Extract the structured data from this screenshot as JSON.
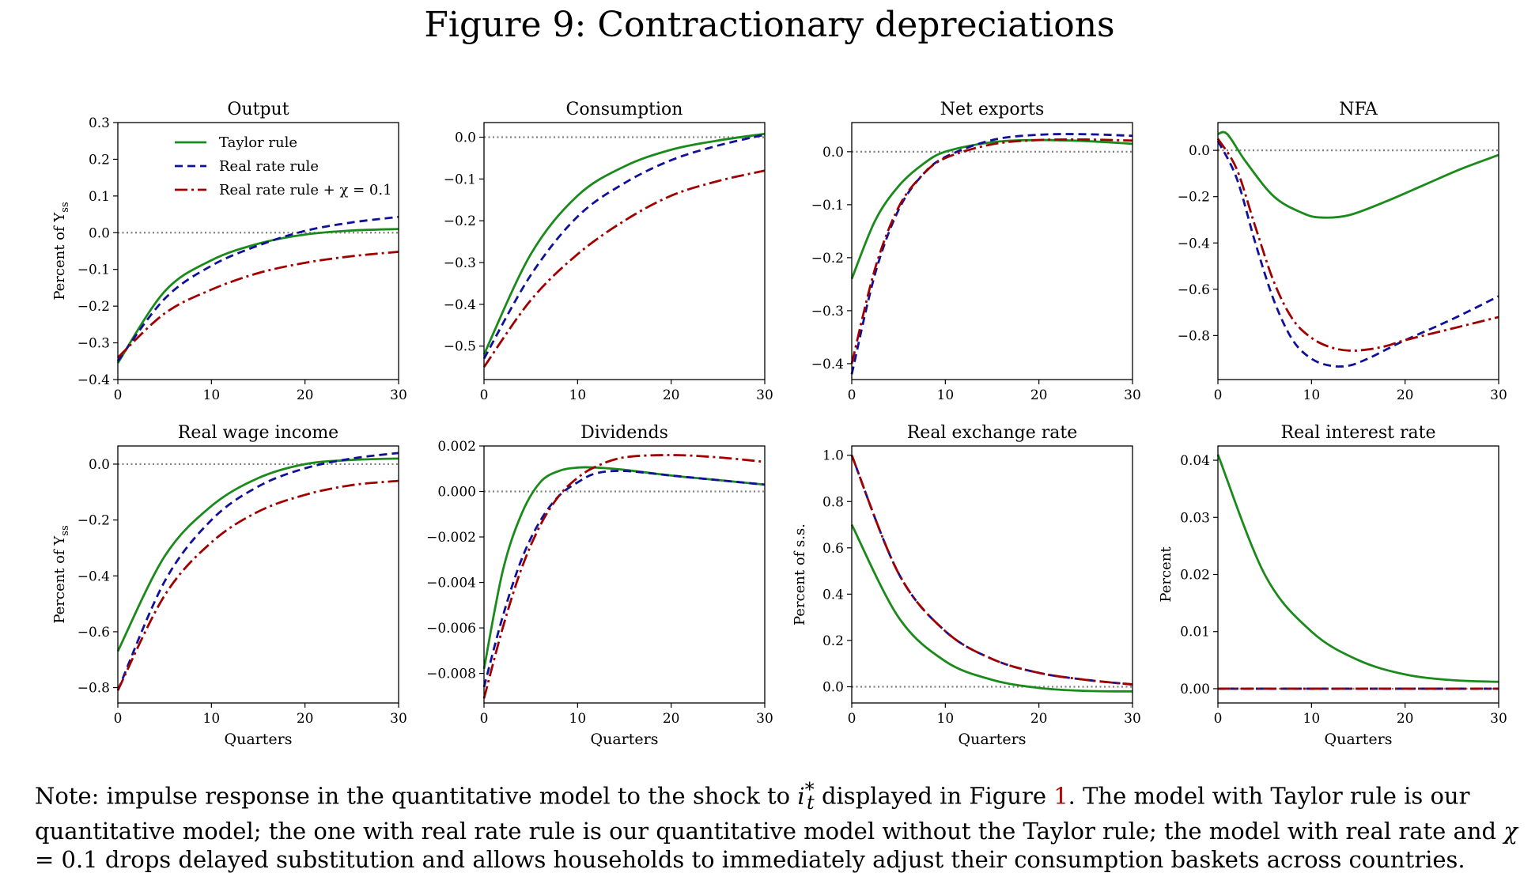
{
  "figure_title": "Figure 9: Contractionary depreciations",
  "note": {
    "part1": "Note: impulse response in the quantitative model to the shock to ",
    "math_var": "i",
    "math_sup": "*",
    "math_sub": "t",
    "part2": " displayed in Figure ",
    "figure_ref": "1",
    "part3": ". The model with Taylor rule is our quantitative model; the one with real rate rule is our quantitative model without the Taylor rule; the model with real rate and ",
    "chi": "χ",
    "part4": " = 0.1 drops delayed substitution and allows households to immediately adjust their consumption baskets across countries."
  },
  "legend": [
    {
      "label": "Taylor rule",
      "color": "#1a8a1a",
      "style": "solid"
    },
    {
      "label": "Real rate rule",
      "color": "#10109a",
      "style": "dashed"
    },
    {
      "label": "Real rate rule + χ = 0.1",
      "color": "#a00000",
      "style": "dashdot"
    }
  ],
  "colors": {
    "taylor": "#1a8a1a",
    "real_rate": "#10109a",
    "real_rate_chi": "#a00000",
    "zero_line": "#808080"
  },
  "chart_data": [
    {
      "type": "line",
      "title": "Output",
      "ylabel": "Percent of Y_ss",
      "xlabel": "",
      "xlim": [
        0,
        30
      ],
      "ylim": [
        -0.4,
        0.3
      ],
      "xticks": [
        0,
        10,
        20,
        30
      ],
      "xticklabels": [
        "0",
        "10",
        "20",
        "30"
      ],
      "yticks": [
        -0.4,
        -0.3,
        -0.2,
        -0.1,
        0.0,
        0.1,
        0.2,
        0.3
      ],
      "yticklabels": [
        "−0.4",
        "−0.3",
        "−0.2",
        "−0.1",
        "0.0",
        "0.1",
        "0.2",
        "0.3"
      ],
      "show_legend": true,
      "series": [
        {
          "name": "Taylor rule",
          "x": [
            0,
            5,
            10,
            15,
            20,
            25,
            30
          ],
          "y": [
            -0.355,
            -0.16,
            -0.075,
            -0.03,
            -0.005,
            0.006,
            0.01
          ]
        },
        {
          "name": "Real rate rule",
          "x": [
            0,
            5,
            10,
            15,
            20,
            25,
            30
          ],
          "y": [
            -0.35,
            -0.18,
            -0.09,
            -0.035,
            0.005,
            0.028,
            0.043
          ]
        },
        {
          "name": "Real rate rule + χ = 0.1",
          "x": [
            0,
            5,
            10,
            15,
            20,
            25,
            30
          ],
          "y": [
            -0.34,
            -0.22,
            -0.155,
            -0.11,
            -0.082,
            -0.064,
            -0.052
          ]
        }
      ]
    },
    {
      "type": "line",
      "title": "Consumption",
      "ylabel": "",
      "xlabel": "",
      "xlim": [
        0,
        30
      ],
      "ylim": [
        -0.58,
        0.035
      ],
      "xticks": [
        0,
        10,
        20,
        30
      ],
      "xticklabels": [
        "0",
        "10",
        "20",
        "30"
      ],
      "yticks": [
        -0.5,
        -0.4,
        -0.3,
        -0.2,
        -0.1,
        0.0
      ],
      "yticklabels": [
        "−0.5",
        "−0.4",
        "−0.3",
        "−0.2",
        "−0.1",
        "0.0"
      ],
      "show_legend": false,
      "series": [
        {
          "name": "Taylor rule",
          "x": [
            0,
            5,
            10,
            15,
            20,
            25,
            30
          ],
          "y": [
            -0.52,
            -0.28,
            -0.14,
            -0.07,
            -0.03,
            -0.008,
            0.008
          ]
        },
        {
          "name": "Real rate rule",
          "x": [
            0,
            5,
            10,
            15,
            20,
            25,
            30
          ],
          "y": [
            -0.53,
            -0.33,
            -0.19,
            -0.11,
            -0.055,
            -0.02,
            0.006
          ]
        },
        {
          "name": "Real rate rule + χ = 0.1",
          "x": [
            0,
            5,
            10,
            15,
            20,
            25,
            30
          ],
          "y": [
            -0.55,
            -0.39,
            -0.28,
            -0.2,
            -0.14,
            -0.105,
            -0.08
          ]
        }
      ]
    },
    {
      "type": "line",
      "title": "Net exports",
      "ylabel": "",
      "xlabel": "",
      "xlim": [
        0,
        30
      ],
      "ylim": [
        -0.43,
        0.055
      ],
      "xticks": [
        0,
        10,
        20,
        30
      ],
      "xticklabels": [
        "0",
        "10",
        "20",
        "30"
      ],
      "yticks": [
        -0.4,
        -0.3,
        -0.2,
        -0.1,
        0.0
      ],
      "yticklabels": [
        "−0.4",
        "−0.3",
        "−0.2",
        "−0.1",
        "0.0"
      ],
      "show_legend": false,
      "series": [
        {
          "name": "Taylor rule",
          "x": [
            0,
            2.5,
            5,
            7.5,
            10,
            15,
            20,
            25,
            30
          ],
          "y": [
            -0.24,
            -0.13,
            -0.065,
            -0.025,
            0.0,
            0.018,
            0.022,
            0.02,
            0.015
          ]
        },
        {
          "name": "Real rate rule",
          "x": [
            0,
            2.5,
            5,
            7.5,
            10,
            15,
            20,
            25,
            30
          ],
          "y": [
            -0.42,
            -0.23,
            -0.11,
            -0.045,
            -0.01,
            0.022,
            0.032,
            0.033,
            0.03
          ]
        },
        {
          "name": "Real rate rule + χ = 0.1",
          "x": [
            0,
            2.5,
            5,
            7.5,
            10,
            15,
            20,
            25,
            30
          ],
          "y": [
            -0.4,
            -0.22,
            -0.105,
            -0.045,
            -0.012,
            0.014,
            0.022,
            0.023,
            0.021
          ]
        }
      ]
    },
    {
      "type": "line",
      "title": "NFA",
      "ylabel": "",
      "xlabel": "",
      "xlim": [
        0,
        30
      ],
      "ylim": [
        -0.99,
        0.12
      ],
      "xticks": [
        0,
        10,
        20,
        30
      ],
      "xticklabels": [
        "0",
        "10",
        "20",
        "30"
      ],
      "yticks": [
        -0.8,
        -0.6,
        -0.4,
        -0.2,
        0.0
      ],
      "yticklabels": [
        "−0.8",
        "−0.6",
        "−0.4",
        "−0.2",
        "0.0"
      ],
      "show_legend": false,
      "series": [
        {
          "name": "Taylor rule",
          "x": [
            0,
            1,
            3,
            6,
            9,
            11,
            14,
            18,
            22,
            26,
            30
          ],
          "y": [
            0.07,
            0.07,
            -0.05,
            -0.2,
            -0.27,
            -0.29,
            -0.28,
            -0.22,
            -0.15,
            -0.08,
            -0.02
          ]
        },
        {
          "name": "Real rate rule",
          "x": [
            0,
            2,
            4,
            6,
            8,
            10,
            12,
            14,
            16,
            18,
            20,
            25,
            30
          ],
          "y": [
            0.04,
            -0.12,
            -0.4,
            -0.65,
            -0.82,
            -0.9,
            -0.93,
            -0.93,
            -0.9,
            -0.86,
            -0.82,
            -0.73,
            -0.63
          ]
        },
        {
          "name": "Real rate rule + χ = 0.1",
          "x": [
            0,
            2,
            4,
            6,
            8,
            10,
            12,
            14,
            16,
            18,
            20,
            25,
            30
          ],
          "y": [
            0.05,
            -0.08,
            -0.33,
            -0.57,
            -0.73,
            -0.81,
            -0.85,
            -0.865,
            -0.86,
            -0.845,
            -0.82,
            -0.77,
            -0.72
          ]
        }
      ]
    },
    {
      "type": "line",
      "title": "Real wage income",
      "ylabel": "Percent of Y_ss",
      "xlabel": "Quarters",
      "xlim": [
        0,
        30
      ],
      "ylim": [
        -0.855,
        0.065
      ],
      "xticks": [
        0,
        10,
        20,
        30
      ],
      "xticklabels": [
        "0",
        "10",
        "20",
        "30"
      ],
      "yticks": [
        -0.8,
        -0.6,
        -0.4,
        -0.2,
        0.0
      ],
      "yticklabels": [
        "−0.8",
        "−0.6",
        "−0.4",
        "−0.2",
        "0.0"
      ],
      "show_legend": false,
      "series": [
        {
          "name": "Taylor rule",
          "x": [
            0,
            5,
            10,
            15,
            20,
            25,
            30
          ],
          "y": [
            -0.67,
            -0.33,
            -0.15,
            -0.05,
            0.0,
            0.015,
            0.02
          ]
        },
        {
          "name": "Real rate rule",
          "x": [
            0,
            5,
            10,
            15,
            20,
            25,
            30
          ],
          "y": [
            -0.81,
            -0.42,
            -0.2,
            -0.08,
            -0.015,
            0.02,
            0.04
          ]
        },
        {
          "name": "Real rate rule + χ = 0.1",
          "x": [
            0,
            5,
            10,
            15,
            20,
            25,
            30
          ],
          "y": [
            -0.81,
            -0.47,
            -0.28,
            -0.17,
            -0.11,
            -0.075,
            -0.06
          ]
        }
      ]
    },
    {
      "type": "line",
      "title": "Dividends",
      "ylabel": "",
      "xlabel": "Quarters",
      "xlim": [
        0,
        30
      ],
      "ylim": [
        -0.0093,
        0.002
      ],
      "xticks": [
        0,
        10,
        20,
        30
      ],
      "xticklabels": [
        "0",
        "10",
        "20",
        "30"
      ],
      "yticks": [
        -0.008,
        -0.006,
        -0.004,
        -0.002,
        0.0,
        0.002
      ],
      "yticklabels": [
        "−0.008",
        "−0.006",
        "−0.004",
        "−0.002",
        "0.000",
        "0.002"
      ],
      "show_legend": false,
      "series": [
        {
          "name": "Taylor rule",
          "x": [
            0,
            2,
            4,
            6,
            8,
            10,
            12,
            15,
            20,
            25,
            30
          ],
          "y": [
            -0.0078,
            -0.0035,
            -0.001,
            0.0004,
            0.0009,
            0.00105,
            0.00105,
            0.00095,
            0.0007,
            0.0005,
            0.0003
          ]
        },
        {
          "name": "Real rate rule",
          "x": [
            0,
            2,
            4,
            6,
            8,
            10,
            12,
            15,
            20,
            25,
            30
          ],
          "y": [
            -0.0086,
            -0.0055,
            -0.003,
            -0.0013,
            -0.0002,
            0.0004,
            0.0008,
            0.0009,
            0.0007,
            0.0005,
            0.0003
          ]
        },
        {
          "name": "Real rate rule + χ = 0.1",
          "x": [
            0,
            2,
            4,
            6,
            8,
            10,
            12,
            15,
            20,
            25,
            30
          ],
          "y": [
            -0.0091,
            -0.006,
            -0.0034,
            -0.0015,
            -0.0002,
            0.0006,
            0.0011,
            0.0015,
            0.0016,
            0.0015,
            0.0013
          ]
        }
      ]
    },
    {
      "type": "line",
      "title": "Real exchange rate",
      "ylabel": "Percent of s.s.",
      "xlabel": "Quarters",
      "xlim": [
        0,
        30
      ],
      "ylim": [
        -0.07,
        1.04
      ],
      "xticks": [
        0,
        10,
        20,
        30
      ],
      "xticklabels": [
        "0",
        "10",
        "20",
        "30"
      ],
      "yticks": [
        0.0,
        0.2,
        0.4,
        0.6,
        0.8,
        1.0
      ],
      "yticklabels": [
        "0.0",
        "0.2",
        "0.4",
        "0.6",
        "0.8",
        "1.0"
      ],
      "show_legend": false,
      "series": [
        {
          "name": "Taylor rule",
          "x": [
            0,
            5,
            10,
            15,
            20,
            25,
            30
          ],
          "y": [
            0.7,
            0.3,
            0.11,
            0.03,
            -0.005,
            -0.018,
            -0.02
          ]
        },
        {
          "name": "Real rate rule",
          "x": [
            0,
            5,
            10,
            15,
            20,
            25,
            30
          ],
          "y": [
            1.0,
            0.49,
            0.24,
            0.12,
            0.06,
            0.03,
            0.01
          ]
        },
        {
          "name": "Real rate rule + χ = 0.1",
          "x": [
            0,
            5,
            10,
            15,
            20,
            25,
            30
          ],
          "y": [
            1.0,
            0.49,
            0.24,
            0.12,
            0.06,
            0.03,
            0.01
          ]
        }
      ]
    },
    {
      "type": "line",
      "title": "Real interest rate",
      "ylabel": "Percent",
      "xlabel": "Quarters",
      "xlim": [
        0,
        30
      ],
      "ylim": [
        -0.0025,
        0.0425
      ],
      "xticks": [
        0,
        10,
        20,
        30
      ],
      "xticklabels": [
        "0",
        "10",
        "20",
        "30"
      ],
      "yticks": [
        0.0,
        0.01,
        0.02,
        0.03,
        0.04
      ],
      "yticklabels": [
        "0.00",
        "0.01",
        "0.02",
        "0.03",
        "0.04"
      ],
      "show_legend": false,
      "series": [
        {
          "name": "Taylor rule",
          "x": [
            0,
            5,
            10,
            15,
            20,
            25,
            30
          ],
          "y": [
            0.041,
            0.02,
            0.01,
            0.005,
            0.0025,
            0.0015,
            0.0012
          ]
        },
        {
          "name": "Real rate rule",
          "x": [
            0,
            30
          ],
          "y": [
            0.0,
            0.0
          ]
        },
        {
          "name": "Real rate rule + χ = 0.1",
          "x": [
            0,
            30
          ],
          "y": [
            0.0,
            0.0
          ]
        }
      ]
    }
  ]
}
